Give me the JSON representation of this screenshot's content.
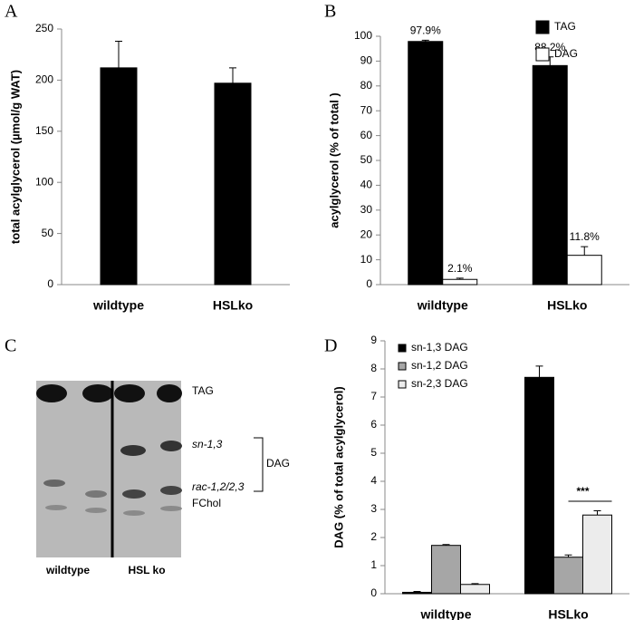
{
  "chart_data": [
    {
      "type": "bar",
      "panel_label": "A",
      "ylabel": "total acylglycerol (µmol/g WAT)",
      "categories": [
        "wildtype",
        "HSLko"
      ],
      "values": [
        212,
        197
      ],
      "errors": [
        26,
        15
      ],
      "color": "#000000",
      "ylim": [
        0,
        250
      ],
      "yticks": [
        0,
        50,
        100,
        150,
        200,
        250
      ]
    },
    {
      "type": "bar",
      "panel_label": "B",
      "ylabel": "acylglycerol (% of total )",
      "categories": [
        "wildtype",
        "HSLko"
      ],
      "series": [
        {
          "name": "TAG",
          "color": "#000000",
          "values": [
            97.9,
            88.2
          ],
          "errors": [
            0.5,
            3.5
          ],
          "value_labels": [
            "97.9%",
            "88.2%"
          ]
        },
        {
          "name": "DAG",
          "color": "#ffffff",
          "values": [
            2.1,
            11.8
          ],
          "errors": [
            0.5,
            3.5
          ],
          "value_labels": [
            "2.1%",
            "11.8%"
          ]
        }
      ],
      "ylim": [
        0,
        100
      ],
      "yticks": [
        0,
        10,
        20,
        30,
        40,
        50,
        60,
        70,
        80,
        90,
        100
      ],
      "legend": "upper right"
    },
    {
      "type": "bar",
      "panel_label": "D",
      "ylabel": "DAG (% of total acylglycerol)",
      "categories": [
        "wildtype",
        "HSLko"
      ],
      "series": [
        {
          "name": "sn-1,3 DAG",
          "color": "#000000",
          "values": [
            0.05,
            7.7
          ],
          "errors": [
            0.03,
            0.4
          ]
        },
        {
          "name": "sn-1,2 DAG",
          "color": "#a6a6a6",
          "values": [
            1.72,
            1.3
          ],
          "errors": [
            0.03,
            0.08
          ]
        },
        {
          "name": "sn-2,3 DAG",
          "color": "#ececec",
          "values": [
            0.33,
            2.8
          ],
          "errors": [
            0.03,
            0.15
          ]
        }
      ],
      "annotation": "***",
      "ylim": [
        0,
        9
      ],
      "yticks": [
        0,
        1,
        2,
        3,
        4,
        5,
        6,
        7,
        8,
        9
      ],
      "legend": "upper left"
    }
  ],
  "gel": {
    "panel_label": "C",
    "lanes": [
      "wildtype",
      "HSL ko"
    ],
    "bands": [
      "TAG",
      "sn-1,3",
      "rac-1,2/2,3",
      "FChol"
    ],
    "group": "DAG"
  }
}
